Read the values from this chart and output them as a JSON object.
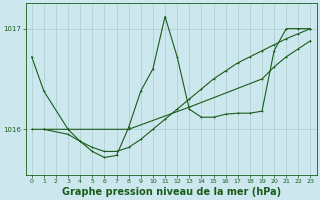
{
  "background_color": "#cce8ee",
  "grid_color": "#aacccc",
  "line_color": "#1a5c1a",
  "marker_color": "#1a5c1a",
  "xlabel": "Graphe pression niveau de la mer (hPa)",
  "xlabel_fontsize": 7.0,
  "tick_label_color": "#1a5c1a",
  "xlim": [
    -0.5,
    23.5
  ],
  "ylim": [
    1015.55,
    1017.25
  ],
  "yticks": [
    1016,
    1017
  ],
  "xticks": [
    0,
    1,
    2,
    3,
    4,
    5,
    6,
    7,
    8,
    9,
    10,
    11,
    12,
    13,
    14,
    15,
    16,
    17,
    18,
    19,
    20,
    21,
    22,
    23
  ],
  "series1_x": [
    0,
    1,
    3,
    4,
    5,
    6,
    7,
    8,
    9,
    10,
    11,
    12,
    13,
    14,
    15,
    16,
    17,
    18,
    19,
    20,
    21,
    22,
    23
  ],
  "series1_y": [
    1016.72,
    1016.38,
    1016.0,
    1015.88,
    1015.78,
    1015.72,
    1015.74,
    1016.02,
    1016.38,
    1016.6,
    1017.12,
    1016.72,
    1016.2,
    1016.12,
    1016.12,
    1016.15,
    1016.16,
    1016.16,
    1016.18,
    1016.78,
    1017.0,
    1017.0,
    1017.0
  ],
  "series2_x": [
    1,
    3,
    8,
    13,
    19,
    20,
    21,
    22,
    23
  ],
  "series2_y": [
    1016.0,
    1016.0,
    1016.0,
    1016.22,
    1016.5,
    1016.62,
    1016.72,
    1016.8,
    1016.88
  ],
  "series3_x": [
    0,
    1,
    3,
    4,
    5,
    6,
    7,
    8,
    9,
    10,
    11,
    12,
    13,
    14,
    15,
    16,
    17,
    18,
    19,
    20,
    21,
    22,
    23
  ],
  "series3_y": [
    1016.0,
    1016.0,
    1015.95,
    1015.88,
    1015.82,
    1015.78,
    1015.78,
    1015.82,
    1015.9,
    1016.0,
    1016.1,
    1016.2,
    1016.3,
    1016.4,
    1016.5,
    1016.58,
    1016.66,
    1016.72,
    1016.78,
    1016.84,
    1016.9,
    1016.95,
    1017.0
  ]
}
